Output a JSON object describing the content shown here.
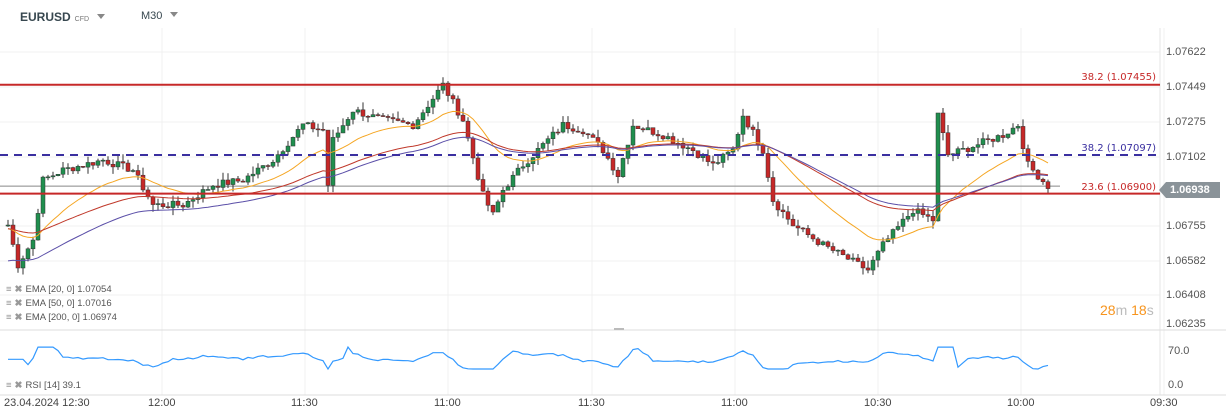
{
  "header": {
    "symbol": "EURUSD",
    "instrument_type": "CFD",
    "timeframe": "M30"
  },
  "price_axis": [
    "1.07622",
    "1.07449",
    "1.07275",
    "1.07102",
    "1.06938",
    "1.06755",
    "1.06582",
    "1.06408",
    "1.06235"
  ],
  "current_price": "1.06938",
  "levels": [
    {
      "label": "38.2 (1.07455)",
      "price": 1.07455,
      "style": "solid",
      "color": "#c62828"
    },
    {
      "label": "38.2 (1.07097)",
      "price": 1.07097,
      "style": "dashed",
      "color": "#3a2fa0"
    },
    {
      "label": "23.6 (1.06900)",
      "price": 1.069,
      "style": "solid",
      "color": "#c62828"
    }
  ],
  "countdown": {
    "minutes": "28",
    "m": "m",
    "seconds": "18",
    "s": "s"
  },
  "indicators": [
    {
      "label": "EMA [20, 0] 1.07054",
      "color": "#f5a623"
    },
    {
      "label": "EMA [50, 0] 1.07016",
      "color": "#c0392b"
    },
    {
      "label": "EMA [200, 0] 1.06974",
      "color": "#5b4fa8"
    }
  ],
  "rsi": {
    "label": "RSI [14] 39.1",
    "axis": [
      "70.0",
      "0.0"
    ],
    "color": "#3399ff"
  },
  "time_axis": [
    "23.04.2024 12:30",
    "12:00",
    "11:30",
    "11:00",
    "11:30",
    "11:00",
    "10:30",
    "10:00",
    "09:30"
  ],
  "chart_data": {
    "type": "candlestick",
    "price_range": [
      1.06235,
      1.07622
    ],
    "keyframes": [
      [
        0,
        1.0674
      ],
      [
        2,
        1.06536
      ],
      [
        5,
        1.06663
      ],
      [
        7,
        1.06969
      ],
      [
        11,
        1.0702
      ],
      [
        19,
        1.07071
      ],
      [
        25,
        1.0702
      ],
      [
        29,
        1.06842
      ],
      [
        35,
        1.06842
      ],
      [
        41,
        1.06944
      ],
      [
        47,
        1.06969
      ],
      [
        53,
        1.07071
      ],
      [
        59,
        1.0725
      ],
      [
        63,
        1.07224
      ],
      [
        64,
        1.06944
      ],
      [
        65,
        1.07173
      ],
      [
        69,
        1.07326
      ],
      [
        75,
        1.07275
      ],
      [
        81,
        1.0725
      ],
      [
        87,
        1.07454
      ],
      [
        91,
        1.07275
      ],
      [
        95,
        1.06893
      ],
      [
        97,
        1.06791
      ],
      [
        99,
        1.06918
      ],
      [
        103,
        1.07046
      ],
      [
        107,
        1.07148
      ],
      [
        111,
        1.0725
      ],
      [
        115,
        1.07224
      ],
      [
        119,
        1.07122
      ],
      [
        122,
        1.06995
      ],
      [
        125,
        1.0725
      ],
      [
        131,
        1.07199
      ],
      [
        137,
        1.07122
      ],
      [
        141,
        1.07046
      ],
      [
        145,
        1.07122
      ],
      [
        147,
        1.07301
      ],
      [
        151,
        1.07122
      ],
      [
        153,
        1.06867
      ],
      [
        157,
        1.0674
      ],
      [
        163,
        1.06638
      ],
      [
        172,
        1.0651
      ],
      [
        175,
        1.06638
      ],
      [
        181,
        1.06816
      ],
      [
        185,
        1.06765
      ],
      [
        186,
        1.07301
      ],
      [
        188,
        1.07097
      ],
      [
        191,
        1.07122
      ],
      [
        199,
        1.07199
      ],
      [
        202,
        1.0725
      ],
      [
        204,
        1.07046
      ],
      [
        208,
        1.06938
      ]
    ]
  }
}
